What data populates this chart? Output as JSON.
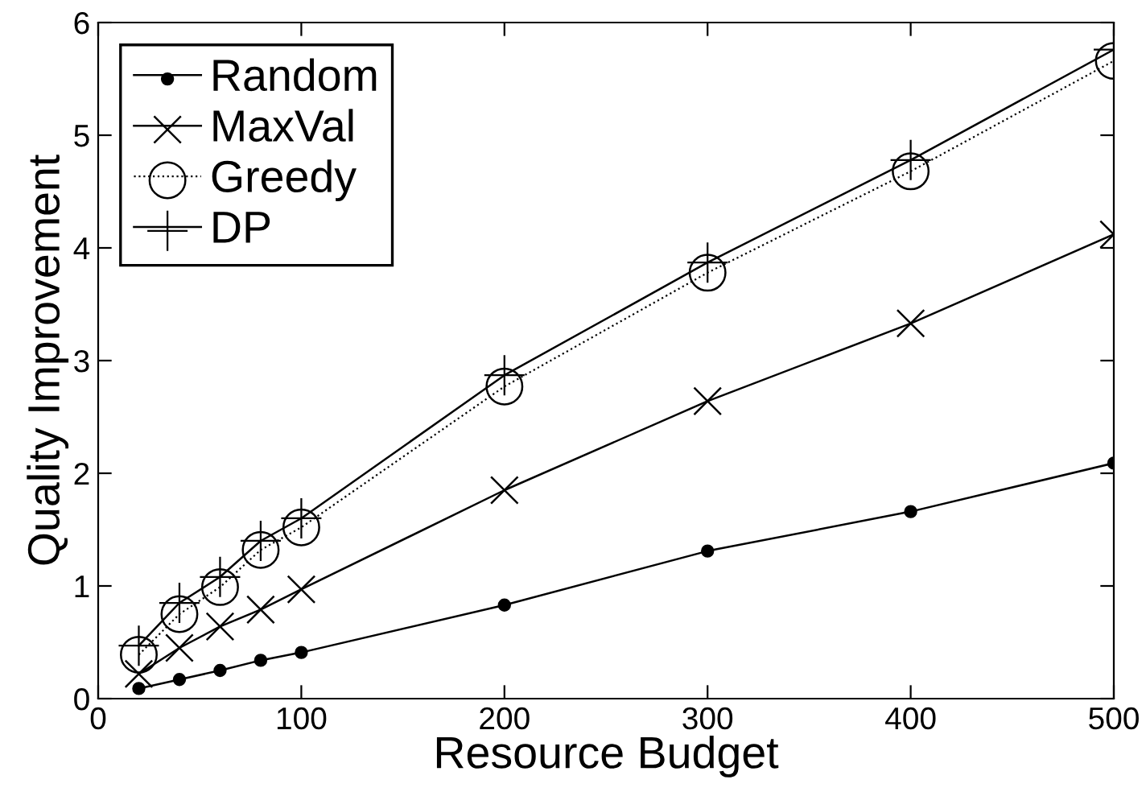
{
  "chart_data": {
    "type": "line",
    "xlabel": "Resource Budget",
    "ylabel": "Quality Improvement",
    "x": [
      20,
      40,
      60,
      80,
      100,
      200,
      300,
      400,
      500
    ],
    "xlim": [
      0,
      500
    ],
    "xticks": [
      0,
      100,
      200,
      300,
      400,
      500
    ],
    "ylim": [
      0,
      6
    ],
    "yticks": [
      0,
      1,
      2,
      3,
      4,
      5,
      6
    ],
    "grid": false,
    "legend": "top left",
    "series": [
      {
        "name": "Random",
        "color": "#000000",
        "marker": "circle",
        "line_style": "solid",
        "values": [
          0.09,
          0.17,
          0.25,
          0.34,
          0.41,
          0.83,
          1.31,
          1.66,
          2.09
        ]
      },
      {
        "name": "MaxVal",
        "color": "#000000",
        "marker": "cross",
        "line_style": "solid",
        "values": [
          0.22,
          0.45,
          0.64,
          0.79,
          0.97,
          1.85,
          2.64,
          3.33,
          4.12
        ]
      },
      {
        "name": "Greedy",
        "color": "#000000",
        "marker": "circle_open",
        "line_style": "dotted",
        "values": [
          0.39,
          0.75,
          0.99,
          1.32,
          1.52,
          2.77,
          3.78,
          4.68,
          5.66
        ]
      },
      {
        "name": "DP",
        "color": "#000000",
        "marker": "plus",
        "line_style": "solid",
        "values": [
          0.47,
          0.85,
          1.08,
          1.4,
          1.6,
          2.87,
          3.87,
          4.78,
          5.76
        ]
      }
    ]
  }
}
